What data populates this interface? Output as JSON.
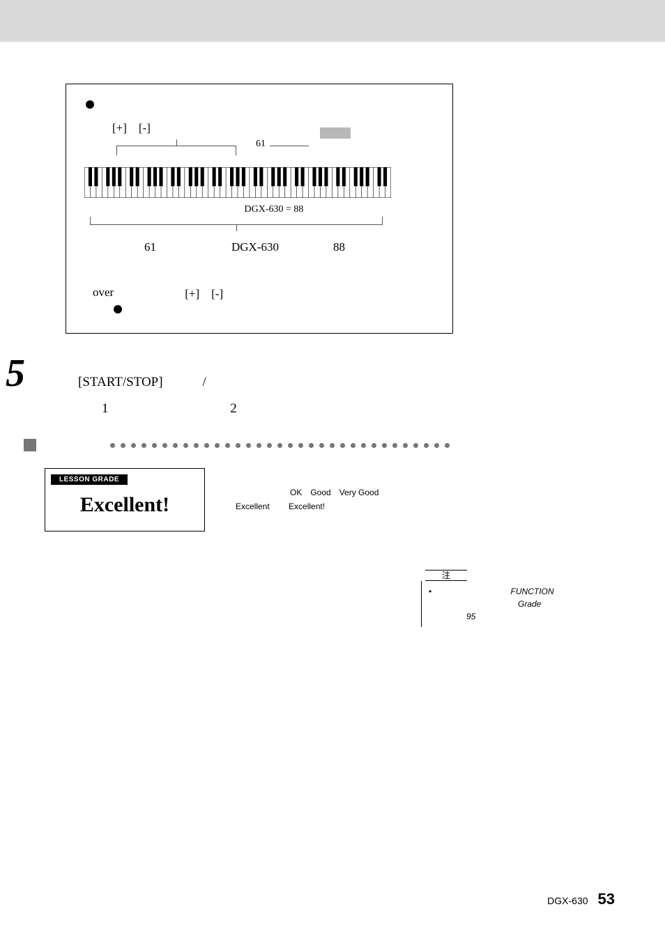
{
  "box": {
    "buttons_label": "[+]　[-]",
    "sixtyone_pointer": "61",
    "dgx_eq": "DGX-630 = 88",
    "row_61": "61",
    "row_dgx": "DGX-630",
    "row_88": "88",
    "over": "over",
    "buttons_label2": "[+]　[-]",
    "keyboard": {
      "octaves": 7
    }
  },
  "step5": {
    "num": "5",
    "line1": "[START/STOP]　　　/",
    "line2_a": "1",
    "line2_b": "2"
  },
  "grade": {
    "bar_label": "LESSON GRADE",
    "excellent": "Excellent!",
    "text_line1": "OK　Good　Very Good",
    "text_prefix": "Excellent",
    "text_suffix": "Excellent!"
  },
  "note": {
    "tab": "注",
    "bullet": "•",
    "function": "FUNCTION",
    "grade_word": "Grade",
    "page_ref": "95"
  },
  "footer": {
    "model": "DGX-630",
    "page": "53"
  },
  "dots_count": 33,
  "colors": {
    "page_bg": "#d9d9d9",
    "dot_gray": "#767676",
    "strip_gray": "#b8b8b8"
  }
}
